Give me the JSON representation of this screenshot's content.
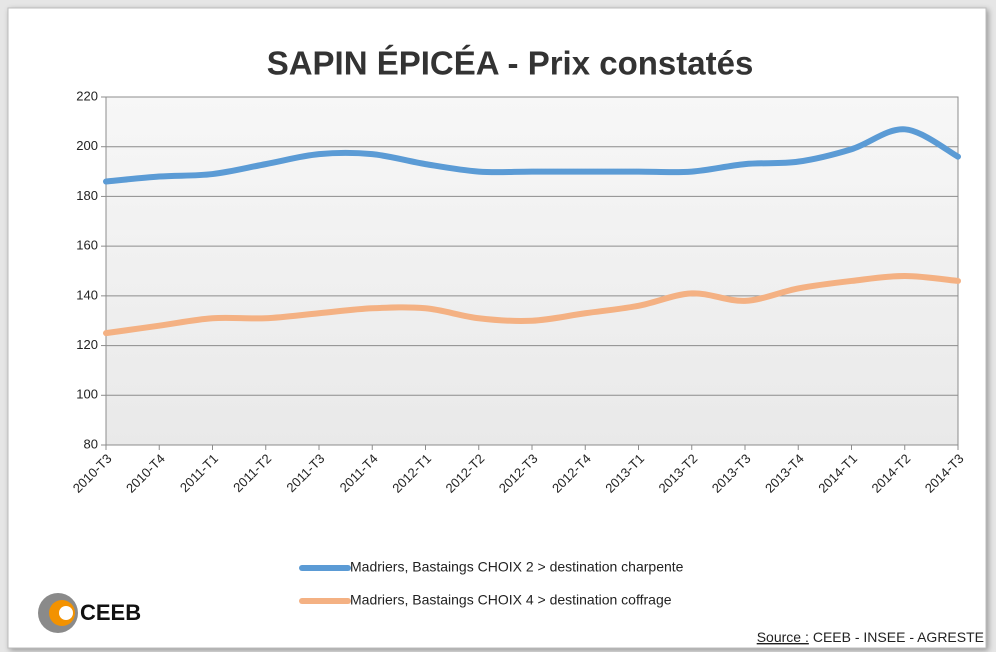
{
  "chart_data": {
    "type": "line",
    "title": "SAPIN ÉPICÉA - Prix constatés",
    "categories": [
      "2010-T3",
      "2010-T4",
      "2011-T1",
      "2011-T2",
      "2011-T3",
      "2011-T4",
      "2012-T1",
      "2012-T2",
      "2012-T3",
      "2012-T4",
      "2013-T1",
      "2013-T2",
      "2013-T3",
      "2013-T4",
      "2014-T1",
      "2014-T2",
      "2014-T3"
    ],
    "series": [
      {
        "name": "Madriers, Bastaings CHOIX 2 > destination charpente",
        "color": "#5b9bd5",
        "values": [
          186,
          188,
          189,
          193,
          197,
          197,
          193,
          190,
          190,
          190,
          190,
          190,
          193,
          194,
          199,
          207,
          196
        ]
      },
      {
        "name": "Madriers, Bastaings CHOIX 4 > destination coffrage",
        "color": "#f4b183",
        "values": [
          125,
          128,
          131,
          131,
          133,
          135,
          135,
          131,
          130,
          133,
          136,
          141,
          138,
          143,
          146,
          148,
          146
        ]
      }
    ],
    "ylim": [
      80,
      220
    ],
    "yticks": [
      80,
      100,
      120,
      140,
      160,
      180,
      200,
      220
    ],
    "grid": true,
    "legend": "bottom",
    "source_label": "Source :",
    "source": "CEEB - INSEE - AGRESTE",
    "logo": "CEEB"
  }
}
